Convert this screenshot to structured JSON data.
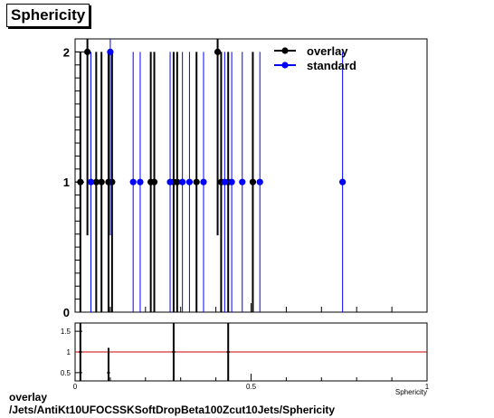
{
  "title": "Sphericity",
  "footer": {
    "line1": "overlay",
    "line2": "/Jets/AntiKt10UFOCSSKSoftDropBeta100Zcut10Jets/Sphericity"
  },
  "colors": {
    "overlay": "#000000",
    "standard": "#0000ff",
    "ratio_line": "#cc0000"
  },
  "chart_data": [
    {
      "type": "scatter",
      "xlim": [
        0,
        1
      ],
      "ylim": [
        0,
        2.1
      ],
      "y_ticks": [
        0,
        1,
        2
      ],
      "legend_position": "top-right",
      "grid": false,
      "series": [
        {
          "name": "overlay",
          "color": "#000000",
          "points": [
            {
              "x": 0.015,
              "y": 1,
              "err": 1
            },
            {
              "x": 0.035,
              "y": 2,
              "err": 1.41
            },
            {
              "x": 0.06,
              "y": 1,
              "err": 1
            },
            {
              "x": 0.075,
              "y": 1,
              "err": 1
            },
            {
              "x": 0.095,
              "y": 1,
              "err": 1
            },
            {
              "x": 0.105,
              "y": 1,
              "err": 1
            },
            {
              "x": 0.215,
              "y": 1,
              "err": 1
            },
            {
              "x": 0.225,
              "y": 1,
              "err": 1
            },
            {
              "x": 0.28,
              "y": 1,
              "err": 1
            },
            {
              "x": 0.29,
              "y": 1,
              "err": 1
            },
            {
              "x": 0.345,
              "y": 1,
              "err": 1
            },
            {
              "x": 0.405,
              "y": 2,
              "err": 1.41
            },
            {
              "x": 0.415,
              "y": 1,
              "err": 1
            },
            {
              "x": 0.435,
              "y": 1,
              "err": 1
            },
            {
              "x": 0.505,
              "y": 1,
              "err": 1
            }
          ]
        },
        {
          "name": "standard",
          "color": "#0000ff",
          "points": [
            {
              "x": 0.045,
              "y": 1,
              "err": 1
            },
            {
              "x": 0.1,
              "y": 2,
              "err": 1.41
            },
            {
              "x": 0.165,
              "y": 1,
              "err": 1
            },
            {
              "x": 0.185,
              "y": 1,
              "err": 1
            },
            {
              "x": 0.27,
              "y": 1,
              "err": 1
            },
            {
              "x": 0.305,
              "y": 1,
              "err": 1
            },
            {
              "x": 0.325,
              "y": 1,
              "err": 1
            },
            {
              "x": 0.365,
              "y": 1,
              "err": 1
            },
            {
              "x": 0.425,
              "y": 1,
              "err": 1
            },
            {
              "x": 0.445,
              "y": 1,
              "err": 1
            },
            {
              "x": 0.475,
              "y": 1,
              "err": 1
            },
            {
              "x": 0.525,
              "y": 1,
              "err": 1
            },
            {
              "x": 0.76,
              "y": 1,
              "err": 1
            }
          ]
        }
      ]
    },
    {
      "type": "scatter",
      "xlim": [
        0,
        1
      ],
      "ylim": [
        0.3,
        1.7
      ],
      "y_ticks": [
        0.5,
        1,
        1.5
      ],
      "y_tick_labels": [
        "0.5",
        "1",
        "1.5"
      ],
      "x_ticks": [
        0,
        0.5,
        1
      ],
      "x_tick_labels": [
        "0",
        "0.5",
        "1"
      ],
      "xlabel": "Sphericity",
      "reference_line": 1,
      "series": [
        {
          "name": "ratio",
          "color": "#000000",
          "points": [
            {
              "x": 0.015,
              "y": 1,
              "err": 1
            },
            {
              "x": 0.095,
              "y": 0.5,
              "err": 0.6
            },
            {
              "x": 0.28,
              "y": 1,
              "err": 1
            },
            {
              "x": 0.435,
              "y": 1,
              "err": 1
            }
          ]
        }
      ]
    }
  ]
}
